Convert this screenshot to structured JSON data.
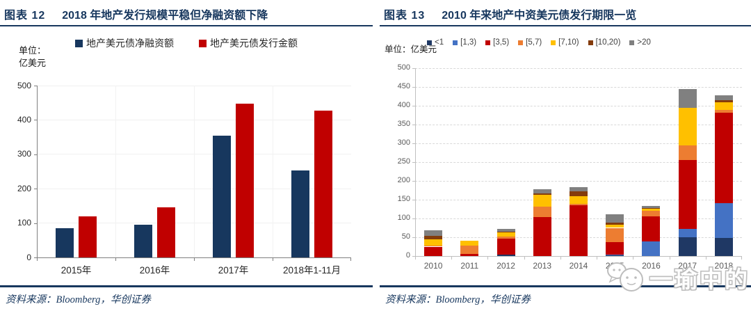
{
  "panels": [
    {
      "fig_label": "图表 12",
      "title": "2018 年地产发行规模平稳但净融资额下降",
      "unit_lines": [
        "单位：",
        "亿美元"
      ],
      "source": "资料来源：Bloomberg，华创证券"
    },
    {
      "fig_label": "图表 13",
      "title": "2010 年来地产中资美元债发行期限一览",
      "unit_lines": [
        "单位：亿美元"
      ],
      "source": "资料来源：Bloomberg，华创证券"
    }
  ],
  "watermark": {
    "text": "一瑜中的"
  },
  "colors": {
    "title_navy": "#17375E",
    "net_financing_navy": "#17375E",
    "issuance_red": "#C00000",
    "stack_lt1": "#1F3864",
    "stack_1_3": "#4472C4",
    "stack_3_5": "#C00000",
    "stack_5_7": "#ED7D31",
    "stack_7_10": "#FFC000",
    "stack_10_20": "#843C0C",
    "stack_gt20": "#808080",
    "watermark_gray": "#BDBDBD"
  },
  "chart_data": [
    {
      "type": "bar",
      "stacked": false,
      "title": "图表 12 2018 年地产发行规模平稳但净融资额下降",
      "unit": "亿美元",
      "categories": [
        "2015年",
        "2016年",
        "2017年",
        "2018年1-11月"
      ],
      "series": [
        {
          "name": "地产美元债净融资额",
          "color": "#17375E",
          "values": [
            85,
            95,
            355,
            253
          ]
        },
        {
          "name": "地产美元债发行金额",
          "color": "#C00000",
          "values": [
            120,
            145,
            448,
            428
          ]
        }
      ],
      "ylim": [
        0,
        500
      ],
      "yticks": [
        0,
        100,
        200,
        300,
        400,
        500
      ],
      "grid": "solid-light",
      "legend_position": "top"
    },
    {
      "type": "bar",
      "stacked": true,
      "title": "图表 13 2010 年来地产中资美元债发行期限一览",
      "unit": "亿美元",
      "categories": [
        "2010",
        "2011",
        "2012",
        "2013",
        "2014",
        "2015",
        "2016",
        "2017",
        "2018"
      ],
      "series": [
        {
          "name": "<1",
          "color": "#1F3864",
          "values": [
            0,
            0,
            3,
            0,
            0,
            2,
            0,
            50,
            48
          ]
        },
        {
          "name": "[1,3)",
          "color": "#4472C4",
          "values": [
            0,
            0,
            0,
            0,
            0,
            2,
            39,
            23,
            92
          ]
        },
        {
          "name": "[3,5)",
          "color": "#C00000",
          "values": [
            25,
            6,
            43,
            104,
            135,
            33,
            67,
            182,
            242
          ]
        },
        {
          "name": "[5,7)",
          "color": "#ED7D31",
          "values": [
            3,
            22,
            6,
            27,
            3,
            38,
            14,
            40,
            7
          ]
        },
        {
          "name": "[7,10)",
          "color": "#FFC000",
          "values": [
            16,
            12,
            11,
            32,
            22,
            9,
            6,
            100,
            20
          ]
        },
        {
          "name": "[10,20)",
          "color": "#843C0C",
          "values": [
            10,
            0,
            2,
            4,
            12,
            4,
            1,
            0,
            6
          ]
        },
        {
          "name": ">20",
          "color": "#808080",
          "values": [
            14,
            0,
            7,
            10,
            12,
            24,
            6,
            50,
            13
          ]
        }
      ],
      "ylim": [
        0,
        500
      ],
      "yticks": [
        0,
        50,
        100,
        150,
        200,
        250,
        300,
        350,
        400,
        450,
        500
      ],
      "grid": "dashed",
      "legend_position": "top"
    }
  ]
}
